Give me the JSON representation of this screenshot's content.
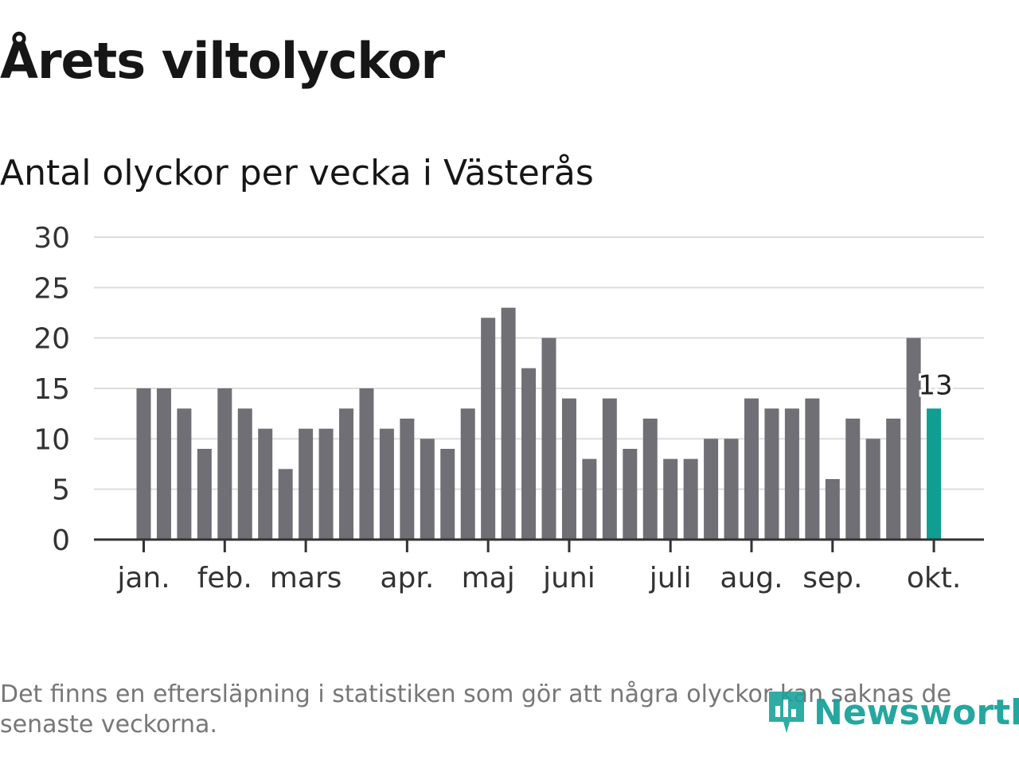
{
  "title": "Årets viltolyckor",
  "subtitle": "Antal olyckor per vecka i Västerås",
  "footnote": "Det finns en eftersläpning i statistiken som gör att några olyckor kan saknas de senaste veckorna.",
  "brand": "Newsworthy",
  "colors": {
    "bar": "#6f6f75",
    "highlight": "#0f9e91",
    "grid": "#dddddd",
    "axis": "#333333",
    "brand": "#1aa39a"
  },
  "chart_data": {
    "type": "bar",
    "ylim": [
      0,
      30
    ],
    "yticks": [
      0,
      5,
      10,
      15,
      20,
      25,
      30
    ],
    "values": [
      15,
      15,
      13,
      9,
      15,
      13,
      11,
      7,
      11,
      11,
      13,
      15,
      11,
      12,
      10,
      9,
      13,
      22,
      23,
      17,
      20,
      14,
      8,
      14,
      9,
      12,
      8,
      8,
      10,
      10,
      14,
      13,
      13,
      14,
      6,
      12,
      10,
      12,
      20,
      13
    ],
    "month_labels": [
      {
        "label": "jan.",
        "bar_index": 0
      },
      {
        "label": "feb.",
        "bar_index": 4
      },
      {
        "label": "mars",
        "bar_index": 8
      },
      {
        "label": "apr.",
        "bar_index": 13
      },
      {
        "label": "maj",
        "bar_index": 17
      },
      {
        "label": "juni",
        "bar_index": 21
      },
      {
        "label": "juli",
        "bar_index": 26
      },
      {
        "label": "aug.",
        "bar_index": 30
      },
      {
        "label": "sep.",
        "bar_index": 34
      },
      {
        "label": "okt.",
        "bar_index": 39
      }
    ],
    "highlight_index": 39,
    "highlight_label": "13",
    "grid": true
  }
}
